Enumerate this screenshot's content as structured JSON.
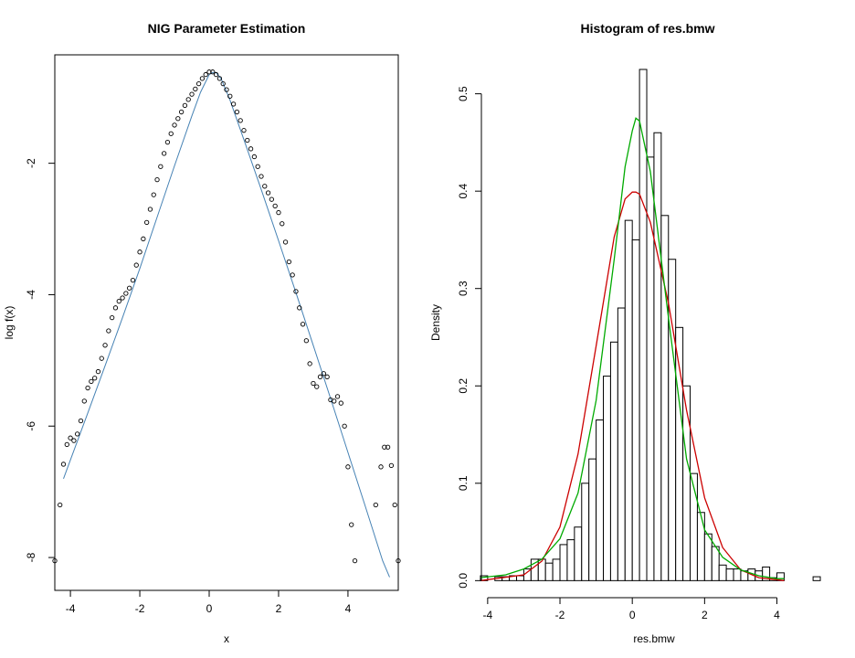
{
  "chart_data": [
    {
      "type": "scatter",
      "title": "NIG Parameter Estimation",
      "xlabel": "x",
      "ylabel": "log f(x)",
      "xlim": [
        -4.45,
        5.45
      ],
      "ylim": [
        -8.5,
        -0.35
      ],
      "xticks": [
        -4,
        -2,
        0,
        2,
        4
      ],
      "yticks": [
        -8,
        -6,
        -4,
        -2
      ],
      "xtick_labels": [
        "-4",
        "-2",
        "0",
        "2",
        "4"
      ],
      "ytick_labels": [
        "-8",
        "-6",
        "-4",
        "-2"
      ],
      "box": true,
      "grid": false,
      "colors": {
        "points": "#000000",
        "fit_line": "#4682b4"
      },
      "series": [
        {
          "kind": "points",
          "x": [
            -4.45,
            -4.3,
            -4.2,
            -4.1,
            -4.0,
            -3.9,
            -3.8,
            -3.7,
            -3.6,
            -3.5,
            -3.4,
            -3.3,
            -3.2,
            -3.1,
            -3.0,
            -2.9,
            -2.8,
            -2.7,
            -2.6,
            -2.5,
            -2.4,
            -2.3,
            -2.2,
            -2.1,
            -2.0,
            -1.9,
            -1.8,
            -1.7,
            -1.6,
            -1.5,
            -1.4,
            -1.3,
            -1.2,
            -1.1,
            -1.0,
            -0.9,
            -0.8,
            -0.7,
            -0.6,
            -0.5,
            -0.4,
            -0.3,
            -0.2,
            -0.1,
            0.0,
            0.1,
            0.2,
            0.3,
            0.4,
            0.5,
            0.6,
            0.7,
            0.8,
            0.9,
            1.0,
            1.1,
            1.2,
            1.3,
            1.4,
            1.5,
            1.6,
            1.7,
            1.8,
            1.9,
            2.0,
            2.1,
            2.2,
            2.3,
            2.4,
            2.5,
            2.6,
            2.7,
            2.8,
            2.9,
            3.0,
            3.1,
            3.2,
            3.3,
            3.4,
            3.5,
            3.6,
            3.7,
            3.8,
            3.9,
            4.0,
            4.1,
            4.2,
            4.8,
            4.95,
            5.05,
            5.15,
            5.25,
            5.35,
            5.45
          ],
          "y": [
            -8.05,
            -7.2,
            -6.58,
            -6.28,
            -6.18,
            -6.22,
            -6.12,
            -5.92,
            -5.62,
            -5.42,
            -5.32,
            -5.27,
            -5.17,
            -4.97,
            -4.77,
            -4.55,
            -4.35,
            -4.2,
            -4.1,
            -4.05,
            -3.98,
            -3.9,
            -3.78,
            -3.55,
            -3.35,
            -3.15,
            -2.9,
            -2.7,
            -2.48,
            -2.25,
            -2.05,
            -1.85,
            -1.68,
            -1.55,
            -1.42,
            -1.32,
            -1.22,
            -1.12,
            -1.03,
            -0.95,
            -0.87,
            -0.79,
            -0.71,
            -0.65,
            -0.61,
            -0.61,
            -0.65,
            -0.71,
            -0.79,
            -0.88,
            -0.98,
            -1.1,
            -1.22,
            -1.35,
            -1.5,
            -1.65,
            -1.78,
            -1.9,
            -2.05,
            -2.2,
            -2.35,
            -2.45,
            -2.55,
            -2.65,
            -2.75,
            -2.92,
            -3.2,
            -3.5,
            -3.7,
            -3.95,
            -4.2,
            -4.45,
            -4.7,
            -5.05,
            -5.35,
            -5.4,
            -5.25,
            -5.2,
            -5.25,
            -5.6,
            -5.62,
            -5.55,
            -5.65,
            -6.0,
            -6.62,
            -7.5,
            -8.05,
            -7.2,
            -6.62,
            -6.32,
            -6.32,
            -6.6,
            -7.2,
            -8.05
          ]
        },
        {
          "kind": "line",
          "x": [
            -4.2,
            -3.5,
            -3.0,
            -2.5,
            -2.0,
            -1.5,
            -1.0,
            -0.5,
            -0.25,
            0.0,
            0.1,
            0.2,
            0.35,
            0.6,
            1.0,
            1.5,
            2.0,
            2.5,
            3.0,
            3.5,
            4.0,
            4.5,
            5.0,
            5.2
          ],
          "y": [
            -6.8,
            -5.8,
            -5.08,
            -4.35,
            -3.6,
            -2.82,
            -2.04,
            -1.28,
            -0.92,
            -0.65,
            -0.62,
            -0.62,
            -0.72,
            -1.04,
            -1.64,
            -2.4,
            -3.18,
            -3.97,
            -4.77,
            -5.58,
            -6.4,
            -7.22,
            -8.05,
            -8.3
          ]
        }
      ]
    },
    {
      "type": "bar",
      "title": "Histogram of res.bmw",
      "xlabel": "res.bmw",
      "ylabel": "Density",
      "xlim": [
        -4.35,
        5.25
      ],
      "ylim": [
        -0.01,
        0.54
      ],
      "xticks": [
        -4,
        -2,
        0,
        2,
        4
      ],
      "yticks": [
        0.0,
        0.1,
        0.2,
        0.3,
        0.4,
        0.5
      ],
      "xtick_labels": [
        "-4",
        "-2",
        "0",
        "2",
        "4"
      ],
      "ytick_labels": [
        "0.0",
        "0.1",
        "0.2",
        "0.3",
        "0.4",
        "0.5"
      ],
      "box": false,
      "grid": false,
      "bin_width": 0.2,
      "bin_starts": [
        -4.2,
        -4.0,
        -3.8,
        -3.6,
        -3.4,
        -3.2,
        -3.0,
        -2.8,
        -2.6,
        -2.4,
        -2.2,
        -2.0,
        -1.8,
        -1.6,
        -1.4,
        -1.2,
        -1.0,
        -0.8,
        -0.6,
        -0.4,
        -0.2,
        0.0,
        0.2,
        0.4,
        0.6,
        0.8,
        1.0,
        1.2,
        1.4,
        1.6,
        1.8,
        2.0,
        2.2,
        2.4,
        2.6,
        2.8,
        3.0,
        3.2,
        3.4,
        3.6,
        3.8,
        4.0,
        4.2,
        4.4,
        4.6,
        4.8,
        5.0
      ],
      "values": [
        0.005,
        0.0,
        0.004,
        0.004,
        0.005,
        0.005,
        0.012,
        0.022,
        0.022,
        0.018,
        0.022,
        0.037,
        0.042,
        0.055,
        0.1,
        0.125,
        0.165,
        0.21,
        0.245,
        0.28,
        0.37,
        0.35,
        0.525,
        0.435,
        0.46,
        0.375,
        0.33,
        0.26,
        0.2,
        0.11,
        0.07,
        0.048,
        0.035,
        0.016,
        0.012,
        0.012,
        0.01,
        0.012,
        0.01,
        0.014,
        0.003,
        0.008,
        0.0,
        0.0,
        0.0,
        0.0,
        0.004
      ],
      "colors": {
        "bars": "#ffffff",
        "bar_edge": "#000000",
        "normal_curve": "#cc0000",
        "nig_curve": "#00aa00"
      },
      "curves": [
        {
          "color": "#cc0000",
          "x": [
            -4.2,
            -3.0,
            -2.5,
            -2.0,
            -1.5,
            -1.0,
            -0.5,
            -0.2,
            0.0,
            0.1,
            0.2,
            0.5,
            1.0,
            1.5,
            2.0,
            2.5,
            3.0,
            3.5,
            4.0,
            4.2
          ],
          "y": [
            0.0,
            0.006,
            0.02,
            0.055,
            0.13,
            0.241,
            0.353,
            0.392,
            0.399,
            0.399,
            0.397,
            0.368,
            0.285,
            0.175,
            0.085,
            0.034,
            0.011,
            0.003,
            0.001,
            0.0
          ]
        },
        {
          "color": "#00aa00",
          "x": [
            -4.2,
            -3.5,
            -3.0,
            -2.5,
            -2.0,
            -1.5,
            -1.0,
            -0.5,
            -0.2,
            0.0,
            0.1,
            0.2,
            0.5,
            1.0,
            1.5,
            2.0,
            2.5,
            3.0,
            3.5,
            4.0,
            4.2
          ],
          "y": [
            0.003,
            0.006,
            0.012,
            0.022,
            0.043,
            0.09,
            0.185,
            0.33,
            0.425,
            0.462,
            0.475,
            0.472,
            0.42,
            0.27,
            0.125,
            0.052,
            0.024,
            0.011,
            0.005,
            0.002,
            0.002
          ]
        }
      ]
    }
  ]
}
